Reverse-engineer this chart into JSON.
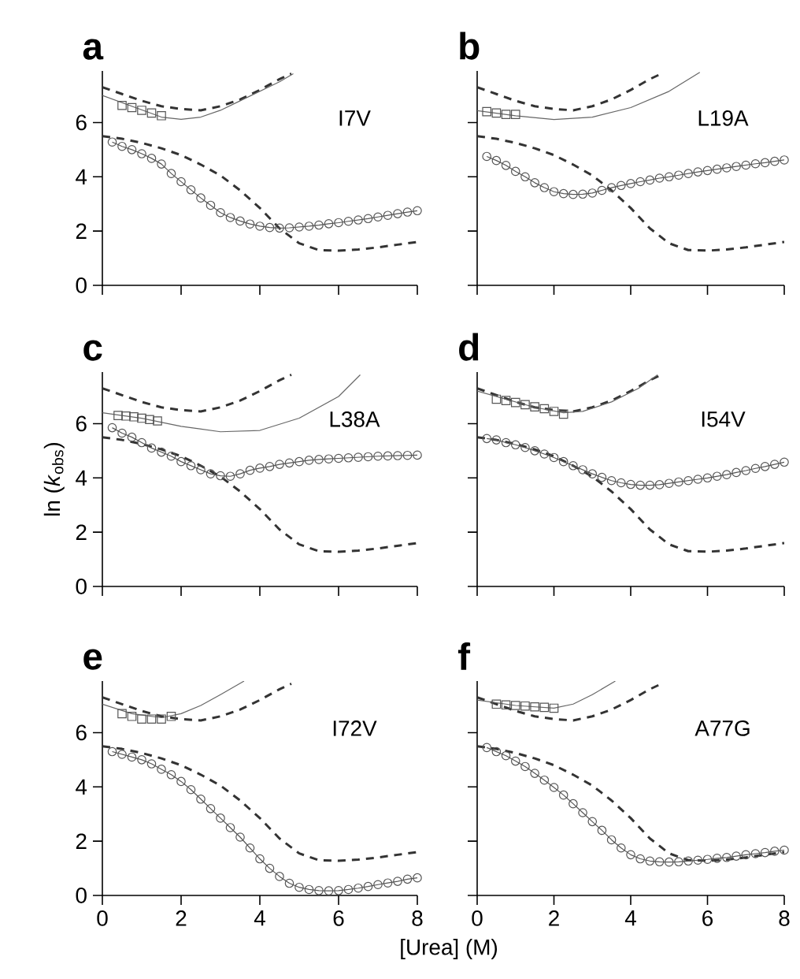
{
  "chart_data": [
    {
      "type": "line",
      "title": "a",
      "annotations": [
        "I7V"
      ],
      "xlim": [
        0,
        8
      ],
      "ylim": [
        0,
        7.9
      ],
      "xticks": [
        0,
        2,
        4,
        6,
        8
      ],
      "yticks": [
        0,
        2,
        4,
        6
      ],
      "tick_labels": "y",
      "series": [
        {
          "type": "line",
          "line_style": "dashed",
          "color": "#333333",
          "x": [
            0,
            0.5,
            1,
            1.5,
            2,
            2.5,
            3,
            3.5,
            4,
            4.5,
            4.8
          ],
          "values": [
            7.3,
            7.05,
            6.8,
            6.6,
            6.5,
            6.45,
            6.6,
            6.85,
            7.2,
            7.6,
            7.8
          ]
        },
        {
          "type": "line",
          "line_style": "dashed",
          "color": "#333333",
          "x": [
            0,
            0.5,
            1,
            1.5,
            2,
            2.5,
            3,
            3.5,
            4,
            4.5,
            5,
            5.5,
            6,
            6.5,
            7,
            7.5,
            8
          ],
          "values": [
            5.5,
            5.4,
            5.25,
            5.05,
            4.8,
            4.45,
            4.05,
            3.5,
            2.85,
            2.1,
            1.55,
            1.3,
            1.28,
            1.32,
            1.4,
            1.5,
            1.6
          ]
        },
        {
          "type": "line",
          "line_style": "solid",
          "color": "#666666",
          "x": [
            0,
            0.75,
            1.5,
            2,
            2.5,
            3,
            3.5,
            4,
            4.5,
            4.85
          ],
          "values": [
            7.0,
            6.6,
            6.2,
            6.12,
            6.2,
            6.45,
            6.8,
            7.15,
            7.5,
            7.8
          ]
        },
        {
          "type": "scatter",
          "marker": "square",
          "color": "#555555",
          "x": [
            0.5,
            0.75,
            1,
            1.25,
            1.5
          ],
          "values": [
            6.63,
            6.55,
            6.45,
            6.35,
            6.25
          ]
        },
        {
          "type": "line",
          "marker": "circle",
          "color": "#555555",
          "x": [
            0.25,
            0.5,
            0.75,
            1,
            1.25,
            1.5,
            1.75,
            2,
            2.25,
            2.5,
            2.75,
            3,
            3.25,
            3.5,
            3.75,
            4,
            4.25,
            4.5,
            4.75,
            5,
            5.25,
            5.5,
            5.75,
            6,
            6.25,
            6.5,
            6.75,
            7,
            7.25,
            7.5,
            7.75,
            8
          ],
          "values": [
            5.28,
            5.12,
            5.0,
            4.85,
            4.68,
            4.47,
            4.12,
            3.82,
            3.52,
            3.22,
            2.95,
            2.68,
            2.5,
            2.37,
            2.26,
            2.18,
            2.13,
            2.11,
            2.12,
            2.15,
            2.18,
            2.22,
            2.27,
            2.31,
            2.36,
            2.41,
            2.46,
            2.52,
            2.58,
            2.64,
            2.7,
            2.75
          ]
        }
      ]
    },
    {
      "type": "line",
      "title": "b",
      "annotations": [
        "L19A"
      ],
      "xlim": [
        0,
        8
      ],
      "ylim": [
        0,
        7.9
      ],
      "xticks": [
        0,
        2,
        4,
        6,
        8
      ],
      "yticks": [
        0,
        2,
        4,
        6
      ],
      "tick_labels": false,
      "series": [
        {
          "type": "line",
          "line_style": "dashed",
          "color": "#333333",
          "x": [
            0,
            0.5,
            1,
            1.5,
            2,
            2.5,
            3,
            3.5,
            4,
            4.5,
            4.8
          ],
          "values": [
            7.3,
            7.05,
            6.8,
            6.6,
            6.5,
            6.45,
            6.6,
            6.85,
            7.2,
            7.6,
            7.8
          ]
        },
        {
          "type": "line",
          "line_style": "dashed",
          "color": "#333333",
          "x": [
            0,
            0.5,
            1,
            1.5,
            2,
            2.5,
            3,
            3.5,
            4,
            4.5,
            5,
            5.5,
            6,
            6.5,
            7,
            7.5,
            8
          ],
          "values": [
            5.5,
            5.4,
            5.25,
            5.05,
            4.8,
            4.45,
            4.05,
            3.5,
            2.85,
            2.1,
            1.55,
            1.3,
            1.28,
            1.32,
            1.4,
            1.5,
            1.6
          ]
        },
        {
          "type": "line",
          "line_style": "solid",
          "color": "#666666",
          "x": [
            0,
            1,
            2,
            3,
            4,
            5,
            5.8
          ],
          "values": [
            6.44,
            6.25,
            6.11,
            6.2,
            6.55,
            7.15,
            7.85
          ]
        },
        {
          "type": "scatter",
          "marker": "square",
          "color": "#555555",
          "x": [
            0.25,
            0.5,
            0.75,
            1
          ],
          "values": [
            6.4,
            6.35,
            6.3,
            6.3
          ]
        },
        {
          "type": "line",
          "marker": "circle",
          "color": "#555555",
          "x": [
            0.25,
            0.5,
            0.75,
            1,
            1.25,
            1.5,
            1.75,
            2,
            2.25,
            2.5,
            2.75,
            3,
            3.25,
            3.5,
            3.75,
            4,
            4.25,
            4.5,
            4.75,
            5,
            5.25,
            5.5,
            5.75,
            6,
            6.25,
            6.5,
            6.75,
            7,
            7.25,
            7.5,
            7.75,
            8
          ],
          "values": [
            4.75,
            4.6,
            4.42,
            4.2,
            4.0,
            3.78,
            3.6,
            3.45,
            3.38,
            3.35,
            3.36,
            3.4,
            3.5,
            3.6,
            3.68,
            3.75,
            3.82,
            3.88,
            3.95,
            4.0,
            4.06,
            4.12,
            4.18,
            4.23,
            4.28,
            4.33,
            4.38,
            4.43,
            4.48,
            4.52,
            4.57,
            4.62
          ]
        }
      ]
    },
    {
      "type": "line",
      "title": "c",
      "ylabel": "ln (*k*$_{obs}$)",
      "annotations": [
        "L38A"
      ],
      "xlim": [
        0,
        8
      ],
      "ylim": [
        0,
        7.9
      ],
      "xticks": [
        0,
        2,
        4,
        6,
        8
      ],
      "yticks": [
        0,
        2,
        4,
        6
      ],
      "tick_labels": "y",
      "series": [
        {
          "type": "line",
          "line_style": "dashed",
          "color": "#333333",
          "x": [
            0,
            0.5,
            1,
            1.5,
            2,
            2.5,
            3,
            3.5,
            4,
            4.5,
            4.8
          ],
          "values": [
            7.3,
            7.05,
            6.8,
            6.6,
            6.5,
            6.45,
            6.6,
            6.85,
            7.2,
            7.6,
            7.8
          ]
        },
        {
          "type": "line",
          "line_style": "dashed",
          "color": "#333333",
          "x": [
            0,
            0.5,
            1,
            1.5,
            2,
            2.5,
            3,
            3.5,
            4,
            4.5,
            5,
            5.5,
            6,
            6.5,
            7,
            7.5,
            8
          ],
          "values": [
            5.5,
            5.4,
            5.25,
            5.05,
            4.8,
            4.45,
            4.05,
            3.5,
            2.85,
            2.1,
            1.55,
            1.3,
            1.28,
            1.32,
            1.4,
            1.5,
            1.6
          ]
        },
        {
          "type": "line",
          "line_style": "solid",
          "color": "#666666",
          "x": [
            0,
            1,
            2,
            3,
            4,
            5,
            6,
            6.55
          ],
          "values": [
            6.4,
            6.2,
            5.9,
            5.7,
            5.75,
            6.2,
            7.0,
            7.8
          ]
        },
        {
          "type": "scatter",
          "marker": "square",
          "color": "#555555",
          "x": [
            0.4,
            0.6,
            0.8,
            1,
            1.2,
            1.4
          ],
          "values": [
            6.3,
            6.28,
            6.25,
            6.2,
            6.15,
            6.1
          ]
        },
        {
          "type": "line",
          "marker": "circle",
          "color": "#555555",
          "x": [
            0.25,
            0.5,
            0.75,
            1,
            1.25,
            1.5,
            1.75,
            2,
            2.25,
            2.5,
            2.75,
            3,
            3.25,
            3.5,
            3.75,
            4,
            4.25,
            4.5,
            4.75,
            5,
            5.25,
            5.5,
            5.75,
            6,
            6.25,
            6.5,
            6.75,
            7,
            7.25,
            7.5,
            7.75,
            8
          ],
          "values": [
            5.85,
            5.65,
            5.5,
            5.3,
            5.1,
            4.95,
            4.8,
            4.6,
            4.45,
            4.3,
            4.15,
            4.08,
            4.06,
            4.15,
            4.28,
            4.36,
            4.42,
            4.5,
            4.55,
            4.6,
            4.65,
            4.68,
            4.7,
            4.72,
            4.74,
            4.76,
            4.78,
            4.8,
            4.81,
            4.82,
            4.83,
            4.84
          ]
        }
      ]
    },
    {
      "type": "line",
      "title": "d",
      "annotations": [
        "I54V"
      ],
      "xlim": [
        0,
        8
      ],
      "ylim": [
        0,
        7.9
      ],
      "xticks": [
        0,
        2,
        4,
        6,
        8
      ],
      "yticks": [
        0,
        2,
        4,
        6
      ],
      "tick_labels": false,
      "series": [
        {
          "type": "line",
          "line_style": "dashed",
          "color": "#333333",
          "x": [
            0,
            0.5,
            1,
            1.5,
            2,
            2.5,
            3,
            3.5,
            4,
            4.5,
            4.8
          ],
          "values": [
            7.3,
            7.05,
            6.8,
            6.6,
            6.5,
            6.45,
            6.6,
            6.85,
            7.2,
            7.6,
            7.8
          ]
        },
        {
          "type": "line",
          "line_style": "dashed",
          "color": "#333333",
          "x": [
            0,
            0.5,
            1,
            1.5,
            2,
            2.5,
            3,
            3.5,
            4,
            4.5,
            5,
            5.5,
            6,
            6.5,
            7,
            7.5,
            8
          ],
          "values": [
            5.5,
            5.4,
            5.25,
            5.05,
            4.8,
            4.45,
            4.05,
            3.5,
            2.85,
            2.1,
            1.55,
            1.3,
            1.28,
            1.32,
            1.4,
            1.5,
            1.6
          ]
        },
        {
          "type": "line",
          "line_style": "solid",
          "color": "#666666",
          "x": [
            0,
            0.75,
            1.5,
            2.25,
            2.75,
            3.5,
            4.2,
            4.7
          ],
          "values": [
            7.2,
            6.9,
            6.6,
            6.4,
            6.45,
            6.8,
            7.3,
            7.8
          ]
        },
        {
          "type": "scatter",
          "marker": "square",
          "color": "#555555",
          "x": [
            0.5,
            0.75,
            1,
            1.25,
            1.5,
            1.75,
            2,
            2.25
          ],
          "values": [
            6.9,
            6.85,
            6.78,
            6.7,
            6.62,
            6.55,
            6.45,
            6.35
          ]
        },
        {
          "type": "line",
          "marker": "circle",
          "color": "#555555",
          "x": [
            0.25,
            0.5,
            0.75,
            1,
            1.25,
            1.5,
            1.75,
            2,
            2.25,
            2.5,
            2.75,
            3,
            3.25,
            3.5,
            3.75,
            4,
            4.25,
            4.5,
            4.75,
            5,
            5.25,
            5.5,
            5.75,
            6,
            6.25,
            6.5,
            6.75,
            7,
            7.25,
            7.5,
            7.75,
            8
          ],
          "values": [
            5.45,
            5.4,
            5.3,
            5.22,
            5.12,
            5.0,
            4.88,
            4.75,
            4.6,
            4.45,
            4.3,
            4.15,
            4.02,
            3.9,
            3.82,
            3.76,
            3.73,
            3.73,
            3.75,
            3.8,
            3.85,
            3.9,
            3.95,
            4.0,
            4.06,
            4.12,
            4.2,
            4.27,
            4.35,
            4.42,
            4.5,
            4.58
          ]
        }
      ]
    },
    {
      "type": "line",
      "title": "e",
      "xlabel": "[Urea] (M)",
      "annotations": [
        "I72V"
      ],
      "xlim": [
        0,
        8
      ],
      "ylim": [
        0,
        7.9
      ],
      "xticks": [
        0,
        2,
        4,
        6,
        8
      ],
      "yticks": [
        0,
        2,
        4,
        6
      ],
      "series": [
        {
          "type": "line",
          "line_style": "dashed",
          "color": "#333333",
          "x": [
            0,
            0.5,
            1,
            1.5,
            2,
            2.5,
            3,
            3.5,
            4,
            4.5,
            4.8
          ],
          "values": [
            7.3,
            7.05,
            6.8,
            6.6,
            6.5,
            6.45,
            6.6,
            6.85,
            7.2,
            7.6,
            7.8
          ]
        },
        {
          "type": "line",
          "line_style": "dashed",
          "color": "#333333",
          "x": [
            0,
            0.5,
            1,
            1.5,
            2,
            2.5,
            3,
            3.5,
            4,
            4.5,
            5,
            5.5,
            6,
            6.5,
            7,
            7.5,
            8
          ],
          "values": [
            5.5,
            5.4,
            5.25,
            5.05,
            4.8,
            4.45,
            4.05,
            3.5,
            2.85,
            2.1,
            1.55,
            1.3,
            1.28,
            1.32,
            1.4,
            1.5,
            1.6
          ]
        },
        {
          "type": "line",
          "line_style": "solid",
          "color": "#666666",
          "x": [
            0,
            0.75,
            1.5,
            2,
            2.5,
            3,
            3.6
          ],
          "values": [
            7.05,
            6.7,
            6.55,
            6.7,
            7.0,
            7.4,
            7.9
          ]
        },
        {
          "type": "scatter",
          "marker": "square",
          "color": "#555555",
          "x": [
            0.5,
            0.75,
            1,
            1.25,
            1.5,
            1.75
          ],
          "values": [
            6.7,
            6.6,
            6.5,
            6.5,
            6.5,
            6.6
          ]
        },
        {
          "type": "line",
          "marker": "circle",
          "color": "#555555",
          "x": [
            0.25,
            0.5,
            0.75,
            1,
            1.25,
            1.5,
            1.75,
            2,
            2.25,
            2.5,
            2.75,
            3,
            3.25,
            3.5,
            3.75,
            4,
            4.25,
            4.5,
            4.75,
            5,
            5.25,
            5.5,
            5.75,
            6,
            6.25,
            6.5,
            6.75,
            7,
            7.25,
            7.5,
            7.75,
            8
          ],
          "values": [
            5.3,
            5.2,
            5.1,
            5.0,
            4.85,
            4.65,
            4.45,
            4.2,
            3.9,
            3.55,
            3.2,
            2.85,
            2.5,
            2.15,
            1.75,
            1.35,
            1.0,
            0.7,
            0.45,
            0.3,
            0.22,
            0.18,
            0.17,
            0.18,
            0.22,
            0.27,
            0.33,
            0.4,
            0.46,
            0.52,
            0.6,
            0.65
          ]
        }
      ]
    },
    {
      "type": "line",
      "title": "f",
      "annotations": [
        "A77G"
      ],
      "xlim": [
        0,
        8
      ],
      "ylim": [
        0,
        7.9
      ],
      "xticks": [
        0,
        2,
        4,
        6,
        8
      ],
      "yticks": [
        0,
        2,
        4,
        6
      ],
      "tick_labels": "x",
      "series": [
        {
          "type": "line",
          "line_style": "dashed",
          "color": "#333333",
          "x": [
            0,
            0.5,
            1,
            1.5,
            2,
            2.5,
            3,
            3.5,
            4,
            4.5,
            4.8
          ],
          "values": [
            7.3,
            7.05,
            6.8,
            6.6,
            6.5,
            6.45,
            6.6,
            6.85,
            7.2,
            7.6,
            7.8
          ]
        },
        {
          "type": "line",
          "line_style": "dashed",
          "color": "#333333",
          "x": [
            0,
            0.5,
            1,
            1.5,
            2,
            2.5,
            3,
            3.5,
            4,
            4.5,
            5,
            5.5,
            6,
            6.5,
            7,
            7.5,
            8
          ],
          "values": [
            5.5,
            5.4,
            5.25,
            5.05,
            4.8,
            4.45,
            4.05,
            3.5,
            2.85,
            2.1,
            1.55,
            1.3,
            1.28,
            1.32,
            1.4,
            1.5,
            1.6
          ]
        },
        {
          "type": "line",
          "line_style": "solid",
          "color": "#666666",
          "x": [
            0,
            1,
            2,
            2.5,
            3,
            3.6
          ],
          "values": [
            7.2,
            7.0,
            6.9,
            7.05,
            7.4,
            7.9
          ]
        },
        {
          "type": "scatter",
          "marker": "square",
          "color": "#555555",
          "x": [
            0.5,
            0.75,
            1,
            1.25,
            1.5,
            1.75,
            2
          ],
          "values": [
            7.05,
            7.02,
            7.0,
            6.98,
            6.95,
            6.93,
            6.9
          ]
        },
        {
          "type": "line",
          "marker": "circle",
          "color": "#555555",
          "x": [
            0.25,
            0.5,
            0.75,
            1,
            1.25,
            1.5,
            1.75,
            2,
            2.25,
            2.5,
            2.75,
            3,
            3.25,
            3.5,
            3.75,
            4,
            4.25,
            4.5,
            4.75,
            5,
            5.25,
            5.5,
            5.75,
            6,
            6.25,
            6.5,
            6.75,
            7,
            7.25,
            7.5,
            7.75,
            8
          ],
          "values": [
            5.45,
            5.3,
            5.15,
            4.95,
            4.75,
            4.5,
            4.25,
            3.98,
            3.7,
            3.38,
            3.05,
            2.72,
            2.4,
            2.05,
            1.75,
            1.5,
            1.35,
            1.27,
            1.24,
            1.23,
            1.24,
            1.27,
            1.3,
            1.33,
            1.37,
            1.4,
            1.45,
            1.5,
            1.54,
            1.58,
            1.63,
            1.67
          ]
        }
      ]
    }
  ]
}
